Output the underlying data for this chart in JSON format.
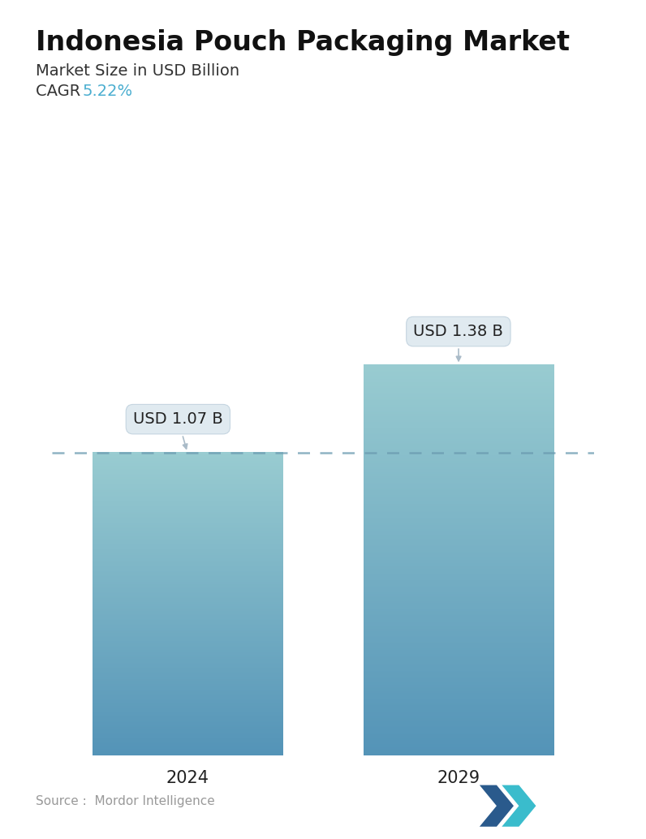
{
  "title": "Indonesia Pouch Packaging Market",
  "subtitle": "Market Size in USD Billion",
  "cagr_label": "CAGR ",
  "cagr_value": "5.22%",
  "cagr_color": "#4BAED0",
  "categories": [
    "2024",
    "2029"
  ],
  "values": [
    1.07,
    1.38
  ],
  "bar_labels": [
    "USD 1.07 B",
    "USD 1.38 B"
  ],
  "bar_top_color": "#7EC8C8",
  "bar_bottom_color": "#4A90B8",
  "dashed_line_color": "#6A9AB0",
  "dashed_line_value": 1.07,
  "background_color": "#FFFFFF",
  "source_text": "Source :  Mordor Intelligence",
  "source_color": "#999999",
  "title_fontsize": 24,
  "subtitle_fontsize": 14,
  "cagr_fontsize": 14,
  "xlabel_fontsize": 15,
  "label_fontsize": 14,
  "ylim": [
    0,
    1.72
  ],
  "bar_width": 0.42
}
